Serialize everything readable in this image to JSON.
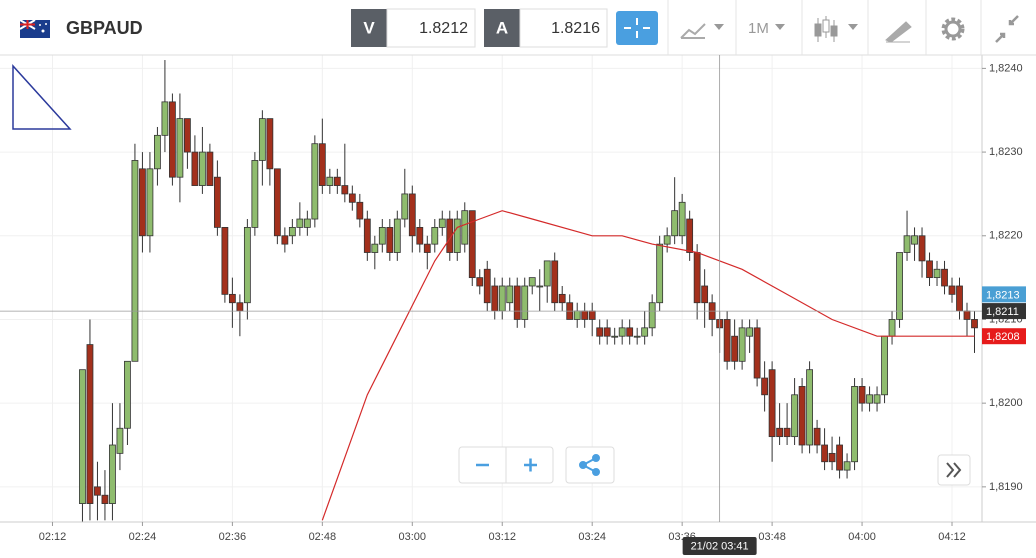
{
  "header": {
    "symbol": "GBPAUD",
    "bid_label": "V",
    "bid": "1.8212",
    "ask_label": "A",
    "ask": "1.8216",
    "timeframe": "1M"
  },
  "chart_data": {
    "type": "candlestick",
    "up_color": "#8fbc6e",
    "down_color": "#a3301c",
    "grid": true,
    "xlim": [
      "02:05",
      "04:16"
    ],
    "xticks": [
      "02:12",
      "02:24",
      "02:36",
      "02:48",
      "03:00",
      "03:12",
      "03:24",
      "03:36",
      "03:48",
      "04:00",
      "04:12"
    ],
    "ylim": [
      1.81858,
      1.82416
    ],
    "yticks": [
      {
        "value": 1.824,
        "label": "1,8240"
      },
      {
        "value": 1.823,
        "label": "1,8230"
      },
      {
        "value": 1.822,
        "label": "1,8220"
      },
      {
        "value": 1.821,
        "label": "1,8210"
      },
      {
        "value": 1.82,
        "label": "1,8200"
      },
      {
        "value": 1.819,
        "label": "1,8190"
      }
    ],
    "candles": [
      [
        "02:16",
        1.8188,
        1.8204,
        1.8185,
        1.8204
      ],
      [
        "02:17",
        1.8207,
        1.821,
        1.8186,
        1.8188
      ],
      [
        "02:18",
        1.819,
        1.8193,
        1.8186,
        1.8189
      ],
      [
        "02:19",
        1.8189,
        1.8192,
        1.8186,
        1.8188
      ],
      [
        "02:20",
        1.8188,
        1.82,
        1.8186,
        1.8195
      ],
      [
        "02:21",
        1.8194,
        1.82,
        1.8192,
        1.8197
      ],
      [
        "02:22",
        1.8197,
        1.8205,
        1.8195,
        1.8205
      ],
      [
        "02:23",
        1.8205,
        1.8231,
        1.8205,
        1.8229
      ],
      [
        "02:24",
        1.8228,
        1.823,
        1.8218,
        1.822
      ],
      [
        "02:25",
        1.822,
        1.823,
        1.8218,
        1.8228
      ],
      [
        "02:26",
        1.8228,
        1.8233,
        1.8226,
        1.8232
      ],
      [
        "02:27",
        1.8232,
        1.8241,
        1.823,
        1.8236
      ],
      [
        "02:28",
        1.8236,
        1.8237,
        1.8226,
        1.8227
      ],
      [
        "02:29",
        1.8227,
        1.8237,
        1.8224,
        1.8234
      ],
      [
        "02:30",
        1.8234,
        1.8234,
        1.8228,
        1.823
      ],
      [
        "02:31",
        1.823,
        1.8232,
        1.8226,
        1.8226
      ],
      [
        "02:32",
        1.8226,
        1.8233,
        1.8225,
        1.823
      ],
      [
        "02:33",
        1.823,
        1.8231,
        1.8226,
        1.8226
      ],
      [
        "02:34",
        1.8227,
        1.8229,
        1.822,
        1.8221
      ],
      [
        "02:35",
        1.8221,
        1.8221,
        1.8212,
        1.8213
      ],
      [
        "02:36",
        1.8213,
        1.8215,
        1.8209,
        1.8212
      ],
      [
        "02:37",
        1.8212,
        1.8213,
        1.8208,
        1.8211
      ],
      [
        "02:38",
        1.8212,
        1.8222,
        1.821,
        1.8221
      ],
      [
        "02:39",
        1.8221,
        1.823,
        1.822,
        1.8229
      ],
      [
        "02:40",
        1.8229,
        1.8235,
        1.8226,
        1.8234
      ],
      [
        "02:41",
        1.8234,
        1.8234,
        1.8226,
        1.8228
      ],
      [
        "02:42",
        1.8228,
        1.8228,
        1.8219,
        1.822
      ],
      [
        "02:43",
        1.822,
        1.8221,
        1.8218,
        1.8219
      ],
      [
        "02:44",
        1.822,
        1.8222,
        1.8219,
        1.8221
      ],
      [
        "02:45",
        1.8221,
        1.8224,
        1.822,
        1.8222
      ],
      [
        "02:46",
        1.8221,
        1.8223,
        1.822,
        1.8222
      ],
      [
        "02:47",
        1.8222,
        1.8232,
        1.8221,
        1.8231
      ],
      [
        "02:48",
        1.8231,
        1.8234,
        1.8225,
        1.8226
      ],
      [
        "02:49",
        1.8226,
        1.8228,
        1.8225,
        1.8227
      ],
      [
        "02:50",
        1.8227,
        1.8228,
        1.8225,
        1.8226
      ],
      [
        "02:51",
        1.8226,
        1.8231,
        1.8224,
        1.8225
      ],
      [
        "02:52",
        1.8225,
        1.8226,
        1.8223,
        1.8224
      ],
      [
        "02:53",
        1.8224,
        1.8225,
        1.8221,
        1.8222
      ],
      [
        "02:54",
        1.8222,
        1.8223,
        1.8217,
        1.8218
      ],
      [
        "02:55",
        1.8218,
        1.822,
        1.8216,
        1.8219
      ],
      [
        "02:56",
        1.8219,
        1.8222,
        1.8218,
        1.8221
      ],
      [
        "02:57",
        1.8221,
        1.8222,
        1.8217,
        1.8218
      ],
      [
        "02:58",
        1.8218,
        1.8223,
        1.8217,
        1.8222
      ],
      [
        "02:59",
        1.8222,
        1.8228,
        1.8221,
        1.8225
      ],
      [
        "03:00",
        1.8225,
        1.8226,
        1.8218,
        1.822
      ],
      [
        "03:01",
        1.8221,
        1.8222,
        1.8218,
        1.8219
      ],
      [
        "03:02",
        1.8219,
        1.822,
        1.8216,
        1.8218
      ],
      [
        "03:03",
        1.8219,
        1.8222,
        1.8218,
        1.8221
      ],
      [
        "03:04",
        1.8221,
        1.8223,
        1.822,
        1.8222
      ],
      [
        "03:05",
        1.8222,
        1.8223,
        1.8217,
        1.8218
      ],
      [
        "03:06",
        1.8218,
        1.8223,
        1.8217,
        1.8222
      ],
      [
        "03:07",
        1.8219,
        1.8224,
        1.8218,
        1.8223
      ],
      [
        "03:08",
        1.8223,
        1.8223,
        1.8214,
        1.8215
      ],
      [
        "03:09",
        1.8215,
        1.8216,
        1.8213,
        1.8214
      ],
      [
        "03:10",
        1.8216,
        1.8217,
        1.8211,
        1.8212
      ],
      [
        "03:11",
        1.8214,
        1.8215,
        1.821,
        1.8211
      ],
      [
        "03:12",
        1.8211,
        1.8215,
        1.821,
        1.8214
      ],
      [
        "03:13",
        1.8212,
        1.8215,
        1.8211,
        1.8214
      ],
      [
        "03:14",
        1.8214,
        1.8215,
        1.8209,
        1.821
      ],
      [
        "03:15",
        1.821,
        1.8215,
        1.8209,
        1.8214
      ],
      [
        "03:16",
        1.8214,
        1.8215,
        1.8213,
        1.8215
      ],
      [
        "03:17",
        1.8214,
        1.8216,
        1.8211,
        1.8214
      ],
      [
        "03:18",
        1.8214,
        1.8217,
        1.8212,
        1.8217
      ],
      [
        "03:19",
        1.8217,
        1.8218,
        1.8211,
        1.8212
      ],
      [
        "03:20",
        1.8213,
        1.8214,
        1.8211,
        1.8212
      ],
      [
        "03:21",
        1.8212,
        1.8213,
        1.821,
        1.821
      ],
      [
        "03:22",
        1.821,
        1.8212,
        1.8209,
        1.8211
      ],
      [
        "03:23",
        1.8211,
        1.8212,
        1.8209,
        1.821
      ],
      [
        "03:24",
        1.8211,
        1.8212,
        1.8208,
        1.821
      ],
      [
        "03:25",
        1.8209,
        1.821,
        1.8207,
        1.8208
      ],
      [
        "03:26",
        1.8209,
        1.821,
        1.8207,
        1.8208
      ],
      [
        "03:27",
        1.8208,
        1.8209,
        1.8207,
        1.8208
      ],
      [
        "03:28",
        1.8208,
        1.821,
        1.8207,
        1.8209
      ],
      [
        "03:29",
        1.8209,
        1.821,
        1.8207,
        1.8208
      ],
      [
        "03:30",
        1.8208,
        1.8209,
        1.8207,
        1.8208
      ],
      [
        "03:31",
        1.8208,
        1.8211,
        1.8207,
        1.8209
      ],
      [
        "03:32",
        1.8209,
        1.8213,
        1.8208,
        1.8212
      ],
      [
        "03:33",
        1.8212,
        1.822,
        1.8211,
        1.8219
      ],
      [
        "03:34",
        1.8219,
        1.8221,
        1.8218,
        1.822
      ],
      [
        "03:35",
        1.822,
        1.8227,
        1.8219,
        1.8223
      ],
      [
        "03:36",
        1.822,
        1.8225,
        1.8219,
        1.8224
      ],
      [
        "03:37",
        1.8222,
        1.8223,
        1.8217,
        1.8218
      ],
      [
        "03:38",
        1.8218,
        1.8219,
        1.821,
        1.8212
      ],
      [
        "03:39",
        1.8214,
        1.8216,
        1.8209,
        1.8212
      ],
      [
        "03:40",
        1.8212,
        1.8213,
        1.8208,
        1.821
      ],
      [
        "03:41",
        1.821,
        1.8211,
        1.8206,
        1.8209
      ],
      [
        "03:42",
        1.821,
        1.8211,
        1.8204,
        1.8205
      ],
      [
        "03:43",
        1.8208,
        1.821,
        1.8204,
        1.8205
      ],
      [
        "03:44",
        1.8205,
        1.821,
        1.8204,
        1.8209
      ],
      [
        "03:45",
        1.8208,
        1.821,
        1.8206,
        1.8209
      ],
      [
        "03:46",
        1.8209,
        1.821,
        1.8202,
        1.8203
      ],
      [
        "03:47",
        1.8203,
        1.8205,
        1.8199,
        1.8201
      ],
      [
        "03:48",
        1.8204,
        1.8205,
        1.8193,
        1.8196
      ],
      [
        "03:49",
        1.8197,
        1.82,
        1.8195,
        1.8196
      ],
      [
        "03:50",
        1.8197,
        1.82,
        1.8195,
        1.8196
      ],
      [
        "03:51",
        1.8196,
        1.8203,
        1.8195,
        1.8201
      ],
      [
        "03:52",
        1.8202,
        1.8203,
        1.8194,
        1.8195
      ],
      [
        "03:53",
        1.8195,
        1.8205,
        1.8194,
        1.8204
      ],
      [
        "03:54",
        1.8197,
        1.8198,
        1.8194,
        1.8195
      ],
      [
        "03:55",
        1.8195,
        1.8197,
        1.8192,
        1.8193
      ],
      [
        "03:56",
        1.8194,
        1.8196,
        1.8192,
        1.8193
      ],
      [
        "03:57",
        1.8195,
        1.8196,
        1.8191,
        1.8192
      ],
      [
        "03:58",
        1.8192,
        1.8194,
        1.8191,
        1.8193
      ],
      [
        "03:59",
        1.8193,
        1.8203,
        1.8192,
        1.8202
      ],
      [
        "04:00",
        1.8202,
        1.8203,
        1.8199,
        1.82
      ],
      [
        "04:01",
        1.82,
        1.8202,
        1.8199,
        1.8201
      ],
      [
        "04:02",
        1.82,
        1.8202,
        1.8199,
        1.8201
      ],
      [
        "04:03",
        1.8201,
        1.8208,
        1.82,
        1.8208
      ],
      [
        "04:04",
        1.8208,
        1.8211,
        1.8207,
        1.821
      ],
      [
        "04:05",
        1.821,
        1.8218,
        1.8209,
        1.8218
      ],
      [
        "04:06",
        1.8218,
        1.8223,
        1.8217,
        1.822
      ],
      [
        "04:07",
        1.8219,
        1.8221,
        1.8217,
        1.822
      ],
      [
        "04:08",
        1.822,
        1.8221,
        1.8215,
        1.8217
      ],
      [
        "04:09",
        1.8217,
        1.8218,
        1.8214,
        1.8215
      ],
      [
        "04:10",
        1.8215,
        1.8217,
        1.8214,
        1.8216
      ],
      [
        "04:11",
        1.8216,
        1.8217,
        1.8213,
        1.8214
      ],
      [
        "04:12",
        1.8214,
        1.8215,
        1.8212,
        1.8213
      ],
      [
        "04:13",
        1.8214,
        1.8215,
        1.821,
        1.8211
      ],
      [
        "04:14",
        1.8211,
        1.8212,
        1.8208,
        1.821
      ],
      [
        "04:15",
        1.821,
        1.8211,
        1.8206,
        1.8209
      ]
    ],
    "moving_average": {
      "color": "#d42a2a",
      "x": [
        "02:48",
        "02:54",
        "03:03",
        "03:06",
        "03:09",
        "03:12",
        "03:16",
        "03:24",
        "03:28",
        "03:32",
        "03:38",
        "03:44",
        "03:50",
        "03:56",
        "04:02",
        "04:06",
        "04:15"
      ],
      "values": [
        1.8186,
        1.8201,
        1.8217,
        1.8221,
        1.8222,
        1.8223,
        1.8222,
        1.822,
        1.822,
        1.8219,
        1.8218,
        1.8216,
        1.8213,
        1.821,
        1.8208,
        1.8208,
        1.8208
      ]
    },
    "price_tags": [
      {
        "value": 1.8213,
        "label": "1,8213",
        "color": "#4a9fd4"
      },
      {
        "value": 1.8208,
        "label": "1,8208",
        "color": "#e61b1b"
      }
    ],
    "crosshair": {
      "time": "03:41",
      "time_label": "21/02 03:41",
      "price": {
        "value": 1.8211,
        "label": "1,8211"
      }
    }
  }
}
